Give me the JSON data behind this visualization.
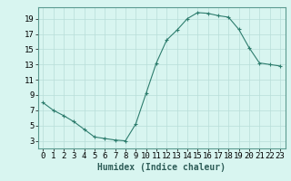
{
  "x": [
    0,
    1,
    2,
    3,
    4,
    5,
    6,
    7,
    8,
    9,
    10,
    11,
    12,
    13,
    14,
    15,
    16,
    17,
    18,
    19,
    20,
    21,
    22,
    23
  ],
  "y": [
    8,
    7,
    6.3,
    5.5,
    4.5,
    3.5,
    3.3,
    3.1,
    3.0,
    5.2,
    9.2,
    13.2,
    16.2,
    17.5,
    19.0,
    19.8,
    19.7,
    19.4,
    19.2,
    17.6,
    15.2,
    13.2,
    13.0,
    12.8
  ],
  "line_color": "#2e7d6e",
  "marker": "+",
  "marker_size": 3,
  "marker_color": "#2e7d6e",
  "bg_color": "#d8f5f0",
  "grid_color": "#b8ddd8",
  "xlabel": "Humidex (Indice chaleur)",
  "xlabel_fontsize": 7,
  "tick_fontsize": 6.5,
  "xlim": [
    -0.5,
    23.5
  ],
  "ylim": [
    2,
    20.5
  ],
  "yticks": [
    3,
    5,
    7,
    9,
    11,
    13,
    15,
    17,
    19
  ],
  "xticks": [
    0,
    1,
    2,
    3,
    4,
    5,
    6,
    7,
    8,
    9,
    10,
    11,
    12,
    13,
    14,
    15,
    16,
    17,
    18,
    19,
    20,
    21,
    22,
    23
  ]
}
